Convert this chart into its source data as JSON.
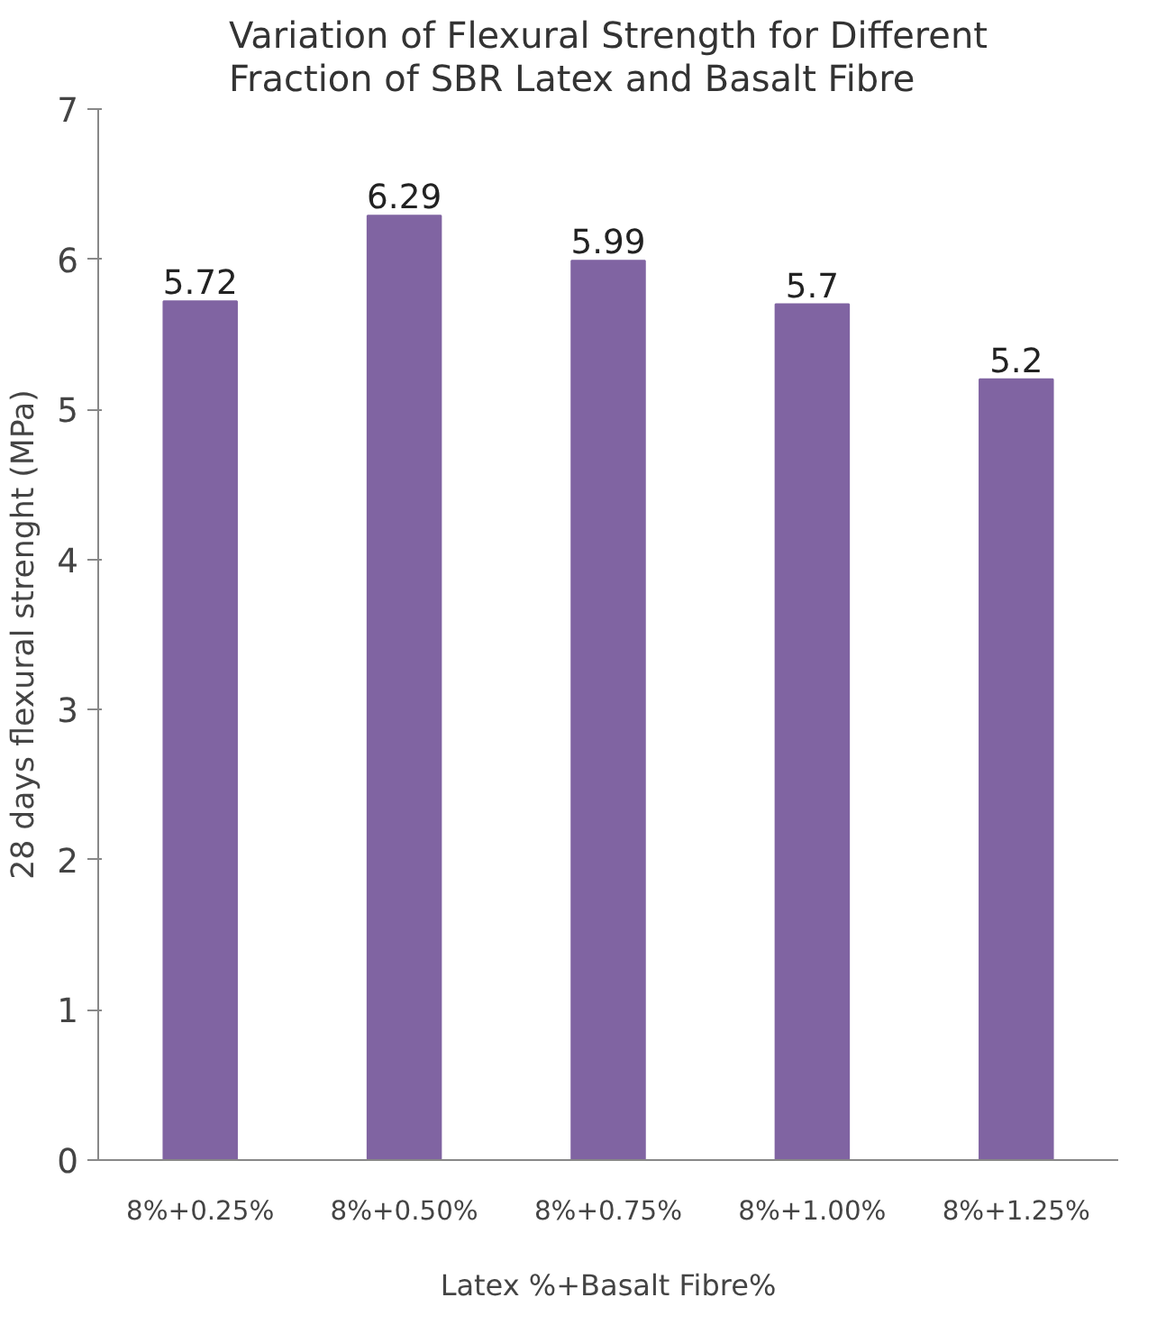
{
  "chart_data": {
    "type": "bar",
    "title": "Variation of Flexural Strength for Different Fraction of SBR Latex and Basalt Fibre",
    "xlabel": "Latex %+Basalt Fibre%",
    "ylabel": "28 days flexural strenght (MPa)",
    "categories": [
      "8%+0.25%",
      "8%+0.50%",
      "8%+0.75%",
      "8%+1.00%",
      "8%+1.25%"
    ],
    "values": [
      5.72,
      6.29,
      5.99,
      5.7,
      5.2
    ],
    "color": "#8064a2",
    "ylim": [
      0,
      7
    ],
    "yticks": [
      0,
      1,
      2,
      3,
      4,
      5,
      6,
      7
    ],
    "grid": false,
    "data_labels": true
  }
}
